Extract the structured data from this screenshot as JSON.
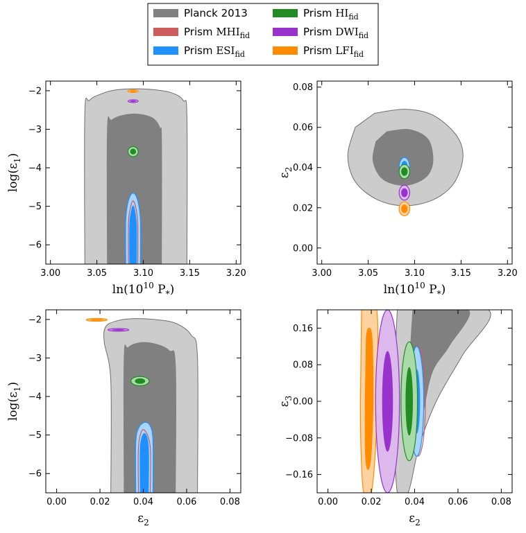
{
  "legend": {
    "entries": [
      {
        "name": "Planck 2013",
        "color": "#808080"
      },
      {
        "name": "Prism HI",
        "base": "Prism",
        "model": "HI",
        "sub": "fid",
        "color": "#228b22"
      },
      {
        "name": "Prism MHI",
        "base": "Prism",
        "model": "MHI",
        "sub": "fid",
        "color": "#cd5c5c"
      },
      {
        "name": "Prism DWI",
        "base": "Prism",
        "model": "DWI",
        "sub": "fid",
        "color": "#9932cc"
      },
      {
        "name": "Prism ESI",
        "base": "Prism",
        "model": "ESI",
        "sub": "fid",
        "color": "#1e90ff"
      },
      {
        "name": "Prism LFI",
        "base": "Prism",
        "model": "LFI",
        "sub": "fid",
        "color": "#ff8c00"
      }
    ]
  },
  "colors": {
    "planck_dark": "#808080",
    "planck_light": "#cccccc",
    "planck_edge": "#6e6e6e",
    "hi_light": "#a9dba9",
    "hi_dark": "#228b22",
    "mhi_edge": "#cd5c5c",
    "dwi_light": "#dcb8ec",
    "dwi_dark": "#9932cc",
    "esi_light": "#a8d4ff",
    "esi_dark": "#1e90ff",
    "lfi_light": "#ffd2a0",
    "lfi_dark": "#ff8c00"
  },
  "chart_data": [
    {
      "type": "contour",
      "id": "top-left",
      "xlabel": "ln(10^10 P_*)",
      "ylabel": "log(ε_1)",
      "xlim": [
        2.995,
        3.205
      ],
      "ylim": [
        -6.5,
        -1.75
      ],
      "xticks": [
        "3.00",
        "3.05",
        "3.10",
        "3.15",
        "3.20"
      ],
      "xtick_values": [
        3.0,
        3.05,
        3.1,
        3.15,
        3.2
      ],
      "yticks": [
        "−2",
        "−3",
        "−4",
        "−5",
        "−6"
      ],
      "ytick_values": [
        -2,
        -3,
        -4,
        -5,
        -6
      ],
      "regions": [
        {
          "model": "Planck",
          "level": "95",
          "points": [
            [
              3.037,
              -6.5
            ],
            [
              3.037,
              -2.6
            ],
            [
              3.042,
              -2.25
            ],
            [
              3.055,
              -2.08
            ],
            [
              3.07,
              -1.98
            ],
            [
              3.09,
              -1.95
            ],
            [
              3.11,
              -1.97
            ],
            [
              3.13,
              -2.05
            ],
            [
              3.143,
              -2.25
            ],
            [
              3.147,
              -2.7
            ],
            [
              3.147,
              -6.5
            ]
          ]
        },
        {
          "model": "Planck",
          "level": "68",
          "points": [
            [
              3.061,
              -6.5
            ],
            [
              3.061,
              -3.0
            ],
            [
              3.066,
              -2.75
            ],
            [
              3.08,
              -2.62
            ],
            [
              3.095,
              -2.6
            ],
            [
              3.11,
              -2.7
            ],
            [
              3.118,
              -2.95
            ],
            [
              3.12,
              -3.3
            ],
            [
              3.12,
              -6.5
            ]
          ]
        },
        {
          "model": "ESI",
          "level": "95",
          "points": [
            [
              3.081,
              -6.5
            ],
            [
              3.081,
              -5.4
            ],
            [
              3.083,
              -4.95
            ],
            [
              3.086,
              -4.72
            ],
            [
              3.089,
              -4.66
            ],
            [
              3.092,
              -4.72
            ],
            [
              3.095,
              -4.95
            ],
            [
              3.097,
              -5.4
            ],
            [
              3.097,
              -6.5
            ]
          ]
        },
        {
          "model": "ESI",
          "level": "68",
          "points": [
            [
              3.085,
              -6.5
            ],
            [
              3.085,
              -5.5
            ],
            [
              3.087,
              -5.1
            ],
            [
              3.089,
              -4.98
            ],
            [
              3.091,
              -5.1
            ],
            [
              3.093,
              -5.5
            ],
            [
              3.093,
              -6.5
            ]
          ]
        },
        {
          "model": "MHI",
          "level": "edge",
          "points": [
            [
              3.084,
              -6.5
            ],
            [
              3.084,
              -5.45
            ],
            [
              3.086,
              -5.05
            ],
            [
              3.089,
              -4.86
            ],
            [
              3.092,
              -5.05
            ],
            [
              3.094,
              -5.45
            ],
            [
              3.094,
              -6.5
            ]
          ]
        }
      ],
      "ellipses": [
        {
          "model": "HI",
          "level": "95",
          "cx": 3.089,
          "cy": -3.58,
          "rx": 0.0055,
          "ry": 0.13
        },
        {
          "model": "HI",
          "level": "68",
          "cx": 3.089,
          "cy": -3.58,
          "rx": 0.0032,
          "ry": 0.075
        },
        {
          "model": "DWI",
          "level": "95",
          "cx": 3.089,
          "cy": -2.27,
          "rx": 0.0055,
          "ry": 0.035
        },
        {
          "model": "DWI",
          "level": "68",
          "cx": 3.089,
          "cy": -2.27,
          "rx": 0.0035,
          "ry": 0.02
        },
        {
          "model": "LFI",
          "level": "95",
          "cx": 3.089,
          "cy": -2.01,
          "rx": 0.0055,
          "ry": 0.035
        },
        {
          "model": "LFI",
          "level": "68",
          "cx": 3.089,
          "cy": -2.01,
          "rx": 0.0035,
          "ry": 0.02
        }
      ]
    },
    {
      "type": "contour",
      "id": "top-right",
      "xlabel": "ln(10^10 P_*)",
      "ylabel": "ε_2",
      "xlim": [
        2.995,
        3.205
      ],
      "ylim": [
        -0.008,
        0.083
      ],
      "xticks": [
        "3.00",
        "3.05",
        "3.10",
        "3.15",
        "3.20"
      ],
      "xtick_values": [
        3.0,
        3.05,
        3.1,
        3.15,
        3.2
      ],
      "yticks": [
        "0.08",
        "0.06",
        "0.04",
        "0.02",
        "0.00"
      ],
      "ytick_values": [
        0.08,
        0.06,
        0.04,
        0.02,
        0.0
      ],
      "regions": [
        {
          "model": "Planck",
          "level": "95",
          "points": [
            [
              3.057,
              0.067
            ],
            [
              3.09,
              0.069
            ],
            [
              3.12,
              0.066
            ],
            [
              3.145,
              0.056
            ],
            [
              3.152,
              0.045
            ],
            [
              3.142,
              0.032
            ],
            [
              3.12,
              0.024
            ],
            [
              3.09,
              0.021
            ],
            [
              3.06,
              0.024
            ],
            [
              3.036,
              0.033
            ],
            [
              3.028,
              0.046
            ],
            [
              3.036,
              0.06
            ]
          ]
        },
        {
          "model": "Planck",
          "level": "68",
          "points": [
            [
              3.07,
              0.058
            ],
            [
              3.095,
              0.059
            ],
            [
              3.115,
              0.054
            ],
            [
              3.12,
              0.043
            ],
            [
              3.112,
              0.035
            ],
            [
              3.09,
              0.031
            ],
            [
              3.066,
              0.034
            ],
            [
              3.055,
              0.043
            ],
            [
              3.058,
              0.053
            ]
          ]
        }
      ],
      "ellipses": [
        {
          "model": "MHI",
          "level": "edge",
          "cx": 3.089,
          "cy": 0.0395,
          "rx": 0.0055,
          "ry": 0.0045
        },
        {
          "model": "ESI",
          "level": "95",
          "cx": 3.089,
          "cy": 0.0405,
          "rx": 0.0055,
          "ry": 0.0045
        },
        {
          "model": "ESI",
          "level": "68",
          "cx": 3.089,
          "cy": 0.0405,
          "rx": 0.0035,
          "ry": 0.0028
        },
        {
          "model": "HI",
          "level": "95",
          "cx": 3.089,
          "cy": 0.038,
          "rx": 0.0057,
          "ry": 0.0035
        },
        {
          "model": "HI",
          "level": "68",
          "cx": 3.089,
          "cy": 0.038,
          "rx": 0.0035,
          "ry": 0.0021
        },
        {
          "model": "DWI",
          "level": "95",
          "cx": 3.089,
          "cy": 0.0275,
          "rx": 0.0057,
          "ry": 0.0037
        },
        {
          "model": "DWI",
          "level": "68",
          "cx": 3.089,
          "cy": 0.0275,
          "rx": 0.0035,
          "ry": 0.0022
        },
        {
          "model": "LFI",
          "level": "95",
          "cx": 3.089,
          "cy": 0.0195,
          "rx": 0.0057,
          "ry": 0.0035
        },
        {
          "model": "LFI",
          "level": "68",
          "cx": 3.089,
          "cy": 0.0195,
          "rx": 0.0035,
          "ry": 0.0021
        }
      ]
    },
    {
      "type": "contour",
      "id": "bottom-left",
      "xlabel": "ε_2",
      "ylabel": "log(ε_1)",
      "xlim": [
        -0.005,
        0.085
      ],
      "ylim": [
        -6.5,
        -1.75
      ],
      "xticks": [
        "0.00",
        "0.02",
        "0.04",
        "0.06",
        "0.08"
      ],
      "xtick_values": [
        0.0,
        0.02,
        0.04,
        0.06,
        0.08
      ],
      "yticks": [
        "−2",
        "−3",
        "−4",
        "−5",
        "−6"
      ],
      "ytick_values": [
        -2,
        -3,
        -4,
        -5,
        -6
      ],
      "regions": [
        {
          "model": "Planck",
          "level": "95",
          "points": [
            [
              0.025,
              -6.5
            ],
            [
              0.025,
              -3.6
            ],
            [
              0.022,
              -2.6
            ],
            [
              0.0225,
              -2.2
            ],
            [
              0.027,
              -2.05
            ],
            [
              0.035,
              -1.98
            ],
            [
              0.045,
              -2.0
            ],
            [
              0.055,
              -2.1
            ],
            [
              0.062,
              -2.4
            ],
            [
              0.065,
              -3.0
            ],
            [
              0.065,
              -6.5
            ]
          ]
        },
        {
          "model": "Planck",
          "level": "68",
          "points": [
            [
              0.031,
              -6.5
            ],
            [
              0.031,
              -3.0
            ],
            [
              0.033,
              -2.72
            ],
            [
              0.038,
              -2.6
            ],
            [
              0.045,
              -2.62
            ],
            [
              0.052,
              -2.8
            ],
            [
              0.055,
              -3.2
            ],
            [
              0.055,
              -6.5
            ]
          ]
        },
        {
          "model": "ESI",
          "level": "95",
          "points": [
            [
              0.0365,
              -6.5
            ],
            [
              0.0365,
              -5.2
            ],
            [
              0.038,
              -4.8
            ],
            [
              0.041,
              -4.67
            ],
            [
              0.0435,
              -4.8
            ],
            [
              0.0445,
              -5.2
            ],
            [
              0.0445,
              -6.5
            ]
          ]
        },
        {
          "model": "ESI",
          "level": "68",
          "points": [
            [
              0.0385,
              -6.5
            ],
            [
              0.0385,
              -5.3
            ],
            [
              0.0405,
              -4.95
            ],
            [
              0.0425,
              -5.3
            ],
            [
              0.0425,
              -6.5
            ]
          ]
        },
        {
          "model": "MHI",
          "level": "edge",
          "points": [
            [
              0.0378,
              -6.5
            ],
            [
              0.0378,
              -5.3
            ],
            [
              0.04,
              -4.86
            ],
            [
              0.0432,
              -5.3
            ],
            [
              0.0432,
              -6.5
            ]
          ]
        }
      ],
      "ellipses": [
        {
          "model": "HI",
          "level": "95",
          "cx": 0.0385,
          "cy": -3.6,
          "rx": 0.0042,
          "ry": 0.12
        },
        {
          "model": "HI",
          "level": "68",
          "cx": 0.0385,
          "cy": -3.6,
          "rx": 0.0024,
          "ry": 0.07
        },
        {
          "model": "DWI",
          "level": "95",
          "cx": 0.0285,
          "cy": -2.27,
          "rx": 0.0048,
          "ry": 0.035
        },
        {
          "model": "DWI",
          "level": "68",
          "cx": 0.0285,
          "cy": -2.27,
          "rx": 0.003,
          "ry": 0.02
        },
        {
          "model": "LFI",
          "level": "95",
          "cx": 0.0185,
          "cy": -2.01,
          "rx": 0.0048,
          "ry": 0.035
        },
        {
          "model": "LFI",
          "level": "68",
          "cx": 0.0185,
          "cy": -2.01,
          "rx": 0.003,
          "ry": 0.02
        }
      ]
    },
    {
      "type": "contour",
      "id": "bottom-right",
      "xlabel": "ε_2",
      "ylabel": "ε_3",
      "xlim": [
        -0.005,
        0.085
      ],
      "ylim": [
        -0.2,
        0.2
      ],
      "xticks": [
        "0.00",
        "0.02",
        "0.04",
        "0.06",
        "0.08"
      ],
      "xtick_values": [
        0.0,
        0.02,
        0.04,
        0.06,
        0.08
      ],
      "yticks": [
        "0.16",
        "0.08",
        "0.00",
        "−0.08",
        "−0.16"
      ],
      "ytick_values": [
        0.16,
        0.08,
        0.0,
        -0.08,
        -0.16
      ],
      "regions": [
        {
          "model": "Planck",
          "level": "95",
          "points": [
            [
              0.032,
              0.2
            ],
            [
              0.074,
              0.2
            ],
            [
              0.062,
              0.1
            ],
            [
              0.05,
              0.0
            ],
            [
              0.042,
              -0.1
            ],
            [
              0.037,
              -0.2
            ],
            [
              0.032,
              -0.2
            ],
            [
              0.03,
              0.0
            ]
          ]
        },
        {
          "model": "Planck",
          "level": "68",
          "points": [
            [
              0.039,
              0.2
            ],
            [
              0.065,
              0.2
            ],
            [
              0.056,
              0.12
            ],
            [
              0.048,
              0.06
            ],
            [
              0.043,
              -0.05
            ],
            [
              0.04,
              -0.05
            ],
            [
              0.037,
              0.05
            ]
          ]
        },
        {
          "model": "LFI",
          "level": "95",
          "points": [
            [
              0.0155,
              0.2
            ],
            [
              0.0225,
              0.2
            ],
            [
              0.0225,
              0.0
            ],
            [
              0.022,
              -0.1
            ],
            [
              0.02,
              -0.2
            ],
            [
              0.0165,
              -0.2
            ],
            [
              0.0152,
              -0.1
            ],
            [
              0.015,
              0.0
            ]
          ]
        },
        {
          "model": "LFI",
          "level": "68",
          "points": [
            [
              0.0175,
              0.14
            ],
            [
              0.0185,
              0.16
            ],
            [
              0.0205,
              0.14
            ],
            [
              0.021,
              0.0
            ],
            [
              0.02,
              -0.12
            ],
            [
              0.0185,
              -0.15
            ],
            [
              0.0172,
              -0.12
            ],
            [
              0.017,
              0.0
            ]
          ]
        }
      ],
      "ellipses": [
        {
          "model": "DWI",
          "level": "95",
          "cx": 0.0275,
          "cy": 0.0,
          "rx": 0.0055,
          "ry": 0.2
        },
        {
          "model": "DWI",
          "level": "68",
          "cx": 0.0275,
          "cy": 0.0,
          "rx": 0.0025,
          "ry": 0.11
        },
        {
          "model": "MHI",
          "level": "edge",
          "cx": 0.0415,
          "cy": 0.0,
          "rx": 0.0035,
          "ry": 0.12
        },
        {
          "model": "ESI",
          "level": "95",
          "cx": 0.041,
          "cy": 0.0,
          "rx": 0.0032,
          "ry": 0.12
        },
        {
          "model": "ESI",
          "level": "68",
          "cx": 0.041,
          "cy": 0.0,
          "rx": 0.0015,
          "ry": 0.07
        },
        {
          "model": "HI",
          "level": "95",
          "cx": 0.0375,
          "cy": 0.0,
          "rx": 0.0038,
          "ry": 0.13
        },
        {
          "model": "HI",
          "level": "68",
          "cx": 0.0375,
          "cy": 0.0,
          "rx": 0.0017,
          "ry": 0.075
        }
      ]
    }
  ]
}
